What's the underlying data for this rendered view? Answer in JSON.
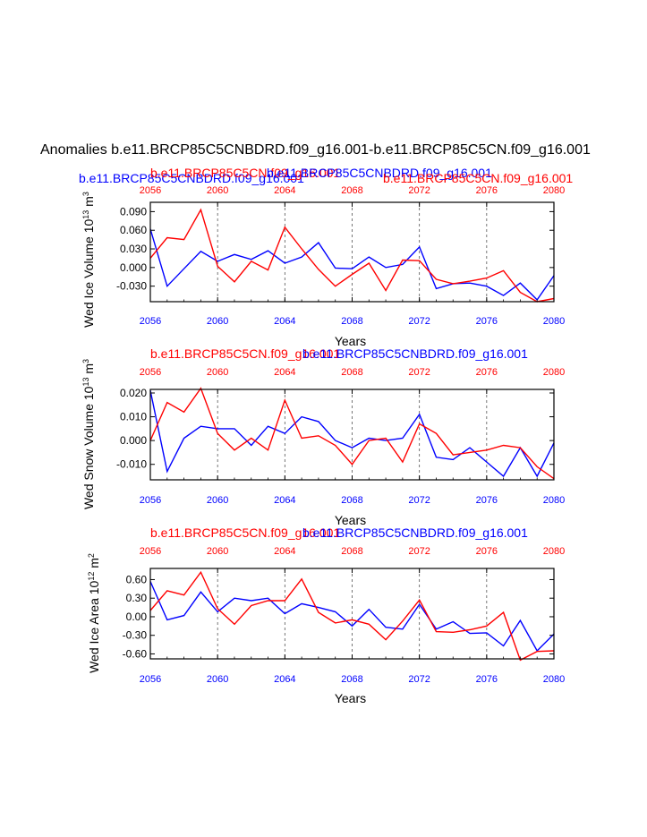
{
  "figure_title": "Anomalies b.e11.BRCP85C5CNBDRD.f09_g16.001-b.e11.BRCP85C5CN.f09_g16.001",
  "colors": {
    "blue": "#0000ff",
    "red": "#ff0000",
    "axis": "#000000",
    "grid": "#555555"
  },
  "chart_data": [
    {
      "type": "line",
      "title_left": "b.e11.BRCP85C5CNBDRD.f09_g16.001",
      "title_mid": "b.e11.BRCP85C5CN.f09_g16.001",
      "title_right": "b.e11.BRCP85C5CN.f09_g16.001",
      "title_center_overlap": "b.e11.BRCP85C5CNBDRD.f09_g16.001",
      "ylabel": "Wed Ice Volume 10",
      "ylabel_sup1": "13",
      "ylabel_mid": " m",
      "ylabel_sup2": "3",
      "xlabel": "Years",
      "xlim": [
        2056,
        2080
      ],
      "ylim": [
        -0.055,
        0.105
      ],
      "xticks": [
        "2056",
        "2060",
        "2064",
        "2068",
        "2072",
        "2076",
        "2080"
      ],
      "top_tick_labels": [
        "2056",
        "2060",
        "2064",
        "2068",
        "2072",
        "2076",
        "2080"
      ],
      "yticks": [
        "0.090",
        "0.060",
        "0.030",
        "0.000",
        "-0.030"
      ],
      "x": [
        2056,
        2057,
        2058,
        2059,
        2060,
        2061,
        2062,
        2063,
        2064,
        2065,
        2066,
        2067,
        2068,
        2069,
        2070,
        2071,
        2072,
        2073,
        2074,
        2075,
        2076,
        2077,
        2078,
        2079,
        2080
      ],
      "series": [
        {
          "name": "b.e11.BRCP85C5CNBDRD.f09_g16.001",
          "color": "blue",
          "values": [
            0.062,
            -0.03,
            -0.002,
            0.026,
            0.01,
            0.021,
            0.013,
            0.027,
            0.007,
            0.017,
            0.04,
            -0.001,
            -0.002,
            0.017,
            0.0,
            0.005,
            0.033,
            -0.034,
            -0.026,
            -0.025,
            -0.03,
            -0.045,
            -0.025,
            -0.052,
            -0.013
          ]
        },
        {
          "name": "b.e11.BRCP85C5CN.f09_g16.001",
          "color": "red",
          "values": [
            0.015,
            0.048,
            0.045,
            0.093,
            0.002,
            -0.023,
            0.01,
            -0.004,
            0.065,
            0.03,
            -0.003,
            -0.03,
            -0.011,
            0.007,
            -0.037,
            0.012,
            0.011,
            -0.019,
            -0.026,
            -0.022,
            -0.017,
            -0.005,
            -0.04,
            -0.055,
            -0.05
          ]
        }
      ]
    },
    {
      "type": "line",
      "title_left": "b.e11.BRCP85C5CN.f09_g16.001",
      "title_center_overlap": "b.e11.BRCP85C5CNBDRD.f09_g16.001",
      "ylabel": "Wed Snow Volume 10",
      "ylabel_sup1": "13",
      "ylabel_mid": " m",
      "ylabel_sup2": "3",
      "xlabel": "Years",
      "xlim": [
        2056,
        2080
      ],
      "ylim": [
        -0.0165,
        0.0215
      ],
      "xticks": [
        "2056",
        "2060",
        "2064",
        "2068",
        "2072",
        "2076",
        "2080"
      ],
      "top_tick_labels": [
        "2056",
        "2060",
        "2064",
        "2068",
        "2072",
        "2076",
        "2080"
      ],
      "yticks": [
        "0.020",
        "0.010",
        "0.000",
        "-0.010"
      ],
      "x": [
        2056,
        2057,
        2058,
        2059,
        2060,
        2061,
        2062,
        2063,
        2064,
        2065,
        2066,
        2067,
        2068,
        2069,
        2070,
        2071,
        2072,
        2073,
        2074,
        2075,
        2076,
        2077,
        2078,
        2079,
        2080
      ],
      "series": [
        {
          "name": "b.e11.BRCP85C5CNBDRD.f09_g16.001",
          "color": "blue",
          "values": [
            0.021,
            -0.013,
            0.001,
            0.006,
            0.005,
            0.005,
            -0.002,
            0.006,
            0.003,
            0.01,
            0.008,
            0.0,
            -0.003,
            0.001,
            0.0,
            0.001,
            0.011,
            -0.007,
            -0.008,
            -0.003,
            -0.009,
            -0.015,
            -0.003,
            -0.015,
            -0.001
          ]
        },
        {
          "name": "b.e11.BRCP85C5CN.f09_g16.001",
          "color": "red",
          "values": [
            0.0,
            0.016,
            0.012,
            0.022,
            0.003,
            -0.004,
            0.001,
            -0.004,
            0.017,
            0.001,
            0.002,
            -0.002,
            -0.01,
            0.0,
            0.001,
            -0.009,
            0.007,
            0.003,
            -0.006,
            -0.005,
            -0.004,
            -0.002,
            -0.003,
            -0.011,
            -0.016
          ]
        }
      ]
    },
    {
      "type": "line",
      "title_left": "b.e11.BRCP85C5CN.f09_g16.001",
      "title_center_overlap": "b.e11.BRCP85C5CNBDRD.f09_g16.001",
      "ylabel": "Wed Ice Area 10",
      "ylabel_sup1": "12",
      "ylabel_mid": " m",
      "ylabel_sup2": "2",
      "xlabel": "Years",
      "xlim": [
        2056,
        2080
      ],
      "ylim": [
        -0.68,
        0.78
      ],
      "xticks": [
        "2056",
        "2060",
        "2064",
        "2068",
        "2072",
        "2076",
        "2080"
      ],
      "top_tick_labels": [
        "2056",
        "2060",
        "2064",
        "2068",
        "2072",
        "2076",
        "2080"
      ],
      "yticks": [
        "0.60",
        "0.30",
        "0.00",
        "-0.30",
        "-0.60"
      ],
      "x": [
        2056,
        2057,
        2058,
        2059,
        2060,
        2061,
        2062,
        2063,
        2064,
        2065,
        2066,
        2067,
        2068,
        2069,
        2070,
        2071,
        2072,
        2073,
        2074,
        2075,
        2076,
        2077,
        2078,
        2079,
        2080
      ],
      "series": [
        {
          "name": "b.e11.BRCP85C5CNBDRD.f09_g16.001",
          "color": "blue",
          "values": [
            0.57,
            -0.05,
            0.02,
            0.4,
            0.08,
            0.3,
            0.26,
            0.3,
            0.05,
            0.21,
            0.15,
            0.08,
            -0.15,
            0.12,
            -0.17,
            -0.2,
            0.2,
            -0.2,
            -0.08,
            -0.27,
            -0.26,
            -0.47,
            -0.06,
            -0.55,
            -0.28
          ]
        },
        {
          "name": "b.e11.BRCP85C5CN.f09_g16.001",
          "color": "red",
          "values": [
            0.1,
            0.42,
            0.35,
            0.72,
            0.13,
            -0.12,
            0.18,
            0.26,
            0.26,
            0.61,
            0.07,
            -0.1,
            -0.05,
            -0.12,
            -0.37,
            -0.07,
            0.27,
            -0.24,
            -0.25,
            -0.21,
            -0.15,
            0.07,
            -0.7,
            -0.56,
            -0.55
          ]
        }
      ]
    }
  ]
}
